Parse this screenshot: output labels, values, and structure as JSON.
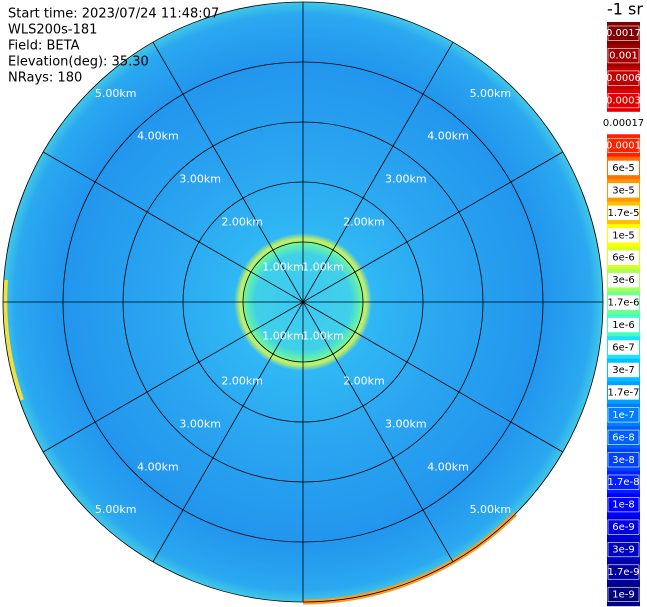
{
  "chart_data": {
    "type": "ppi",
    "info": [
      "Start time: 2023/07/24 11:48:07",
      "WLS200s-181",
      "Field: BETA",
      "Elevation(deg): 35.30",
      "NRays: 180"
    ],
    "rlim": [
      0,
      5
    ],
    "rings": [
      {
        "value": 1,
        "label": "1.00km"
      },
      {
        "value": 2,
        "label": "2.00km"
      },
      {
        "value": 3,
        "label": "3.00km"
      },
      {
        "value": 4,
        "label": "4.00km"
      },
      {
        "value": 5,
        "label": "5.00km"
      }
    ],
    "colorbar_title": "-1 sr",
    "colorbar": [
      0.0017,
      0.001,
      0.0006,
      0.0003,
      0.00017,
      0.0001,
      {
        "value": 6e-05,
        "label": "6e-5"
      },
      {
        "value": 3e-05,
        "label": "3e-5"
      },
      {
        "value": 1.7e-05,
        "label": "1.7e-5"
      },
      {
        "value": 1e-05,
        "label": "1e-5"
      },
      {
        "value": 6e-06,
        "label": "6e-6"
      },
      {
        "value": 3e-06,
        "label": "3e-6"
      },
      {
        "value": 1.7e-06,
        "label": "1.7e-6"
      },
      {
        "value": 1e-06,
        "label": "1e-6"
      },
      6e-07,
      3e-07,
      1.7e-07,
      1e-07,
      6e-08,
      3e-08,
      1.7e-08,
      1e-08,
      6e-09,
      3e-09,
      1.7e-09,
      1e-09
    ],
    "colorbar_colors": [
      "#800000",
      "#a00000",
      "#c00000",
      "#e00000",
      "#ffffff",
      "#ff2000",
      "#ff7000",
      "#ff9800",
      "#ffc000",
      "#ffff00",
      "#d8ff28",
      "#a8ff58",
      "#70ff90",
      "#40ffc0",
      "#20e0ff",
      "#00c0ff",
      "#00a0ff",
      "#0080ff",
      "#0060ff",
      "#0040ff",
      "#0020ff",
      "#0000ff",
      "#0000e0",
      "#0000c0",
      "#0000a0",
      "#000080"
    ]
  }
}
